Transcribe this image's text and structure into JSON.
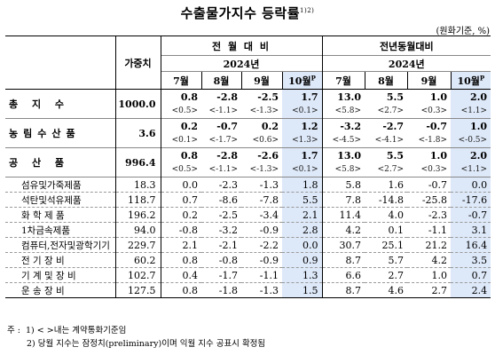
{
  "title": "수출물가지수 등락률",
  "title_sup": "1)2)",
  "unit": "(원화기준, %)",
  "headers": {
    "weight": "가중치",
    "mom": "전 월 대 비",
    "yoy": "전년동월대비",
    "year": "2024년",
    "months": [
      "7월",
      "8월",
      "9월",
      "10월"
    ],
    "prelim_mark": "P"
  },
  "rows": [
    {
      "name": "총 지 수",
      "weight": "1000.0",
      "level": "main",
      "mom": [
        "0.8",
        "-2.8",
        "-2.5",
        "1.7"
      ],
      "mom_c": [
        "<0.5>",
        "<-1.1>",
        "<-1.3>",
        "<0.1>"
      ],
      "yoy": [
        "13.0",
        "5.5",
        "1.0",
        "2.0"
      ],
      "yoy_c": [
        "<5.8>",
        "<2.7>",
        "<0.3>",
        "<1.1>"
      ]
    },
    {
      "name": "농림수산품",
      "weight": "3.6",
      "level": "main",
      "mom": [
        "0.2",
        "-0.7",
        "0.2",
        "1.2"
      ],
      "mom_c": [
        "<0.1>",
        "<-1.7>",
        "<0.6>",
        "<1.3>"
      ],
      "yoy": [
        "-3.2",
        "-2.7",
        "-0.7",
        "1.0"
      ],
      "yoy_c": [
        "<-4.5>",
        "<-4.1>",
        "<-1.8>",
        "<-0.5>"
      ]
    },
    {
      "name": "공 산 품",
      "weight": "996.4",
      "level": "main",
      "mom": [
        "0.8",
        "-2.8",
        "-2.6",
        "1.7"
      ],
      "mom_c": [
        "<0.5>",
        "<-1.1>",
        "<-1.3>",
        "<0.1>"
      ],
      "yoy": [
        "13.0",
        "5.5",
        "1.0",
        "2.0"
      ],
      "yoy_c": [
        "<5.8>",
        "<2.7>",
        "<0.3>",
        "<1.1>"
      ]
    },
    {
      "name": "섬유및가죽제품",
      "weight": "18.3",
      "level": "sub",
      "mom": [
        "0.0",
        "-2.3",
        "-1.3",
        "1.8"
      ],
      "yoy": [
        "5.8",
        "1.6",
        "-0.7",
        "0.0"
      ]
    },
    {
      "name": "석탄및석유제품",
      "weight": "118.7",
      "level": "sub",
      "mom": [
        "0.7",
        "-8.6",
        "-7.8",
        "5.5"
      ],
      "yoy": [
        "7.8",
        "-14.8",
        "-25.8",
        "-17.6"
      ]
    },
    {
      "name": "화 학 제 품",
      "weight": "196.2",
      "level": "sub",
      "mom": [
        "0.2",
        "-2.5",
        "-3.4",
        "2.1"
      ],
      "yoy": [
        "11.4",
        "4.0",
        "-2.3",
        "-0.7"
      ]
    },
    {
      "name": "1차금속제품",
      "weight": "94.0",
      "level": "sub",
      "mom": [
        "-0.8",
        "-3.2",
        "-0.9",
        "2.8"
      ],
      "yoy": [
        "4.2",
        "0.1",
        "-1.1",
        "3.1"
      ]
    },
    {
      "name": "컴퓨터,전자및광학기기",
      "weight": "229.7",
      "level": "sub",
      "mom": [
        "2.1",
        "-2.1",
        "-2.2",
        "0.0"
      ],
      "yoy": [
        "30.7",
        "25.1",
        "21.2",
        "16.4"
      ]
    },
    {
      "name": "전 기 장 비",
      "weight": "60.2",
      "level": "sub",
      "mom": [
        "0.8",
        "-0.8",
        "-0.9",
        "0.9"
      ],
      "yoy": [
        "8.7",
        "5.7",
        "4.2",
        "3.5"
      ]
    },
    {
      "name": "기 계 및 장 비",
      "weight": "102.7",
      "level": "sub",
      "mom": [
        "0.4",
        "-1.7",
        "-1.1",
        "1.3"
      ],
      "yoy": [
        "6.6",
        "2.7",
        "1.0",
        "0.7"
      ]
    },
    {
      "name": "운 송 장 비",
      "weight": "127.5",
      "level": "sub",
      "mom": [
        "0.8",
        "-1.8",
        "-1.3",
        "1.5"
      ],
      "yoy": [
        "8.7",
        "4.6",
        "2.7",
        "2.4"
      ]
    }
  ],
  "notes": {
    "prefix": "주 :",
    "n1": "1) < >내는 계약통화기준임",
    "n2": "2) 당월 지수는 잠정치(preliminary)이며 익월 지수 공표시 확정됨"
  },
  "colors": {
    "highlight": "#dde8f8"
  }
}
